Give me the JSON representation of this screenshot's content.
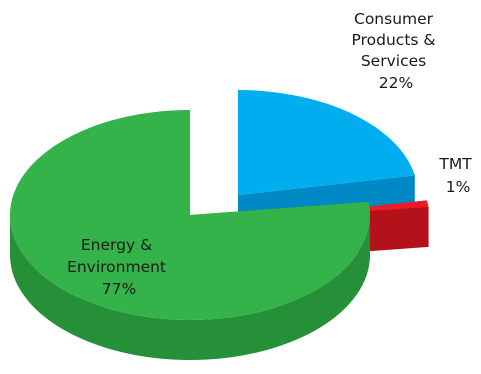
{
  "chart_data": {
    "type": "pie",
    "style": "3d-exploded",
    "title": "",
    "slices": [
      {
        "name": "Consumer Products & Services",
        "label_lines": [
          "Consumer",
          "Products &",
          "Services"
        ],
        "value": 22,
        "value_label": "22%",
        "color": "#00adef",
        "side_color": "#0089c4"
      },
      {
        "name": "TMT",
        "label_lines": [
          "TMT"
        ],
        "value": 1,
        "value_label": "1%",
        "color": "#ed1c24",
        "side_color": "#b3121a"
      },
      {
        "name": "Energy & Environment",
        "label_lines": [
          "Energy &",
          "Environment"
        ],
        "value": 77,
        "value_label": "77%",
        "color": "#34b34a",
        "side_color": "#259037"
      }
    ]
  }
}
